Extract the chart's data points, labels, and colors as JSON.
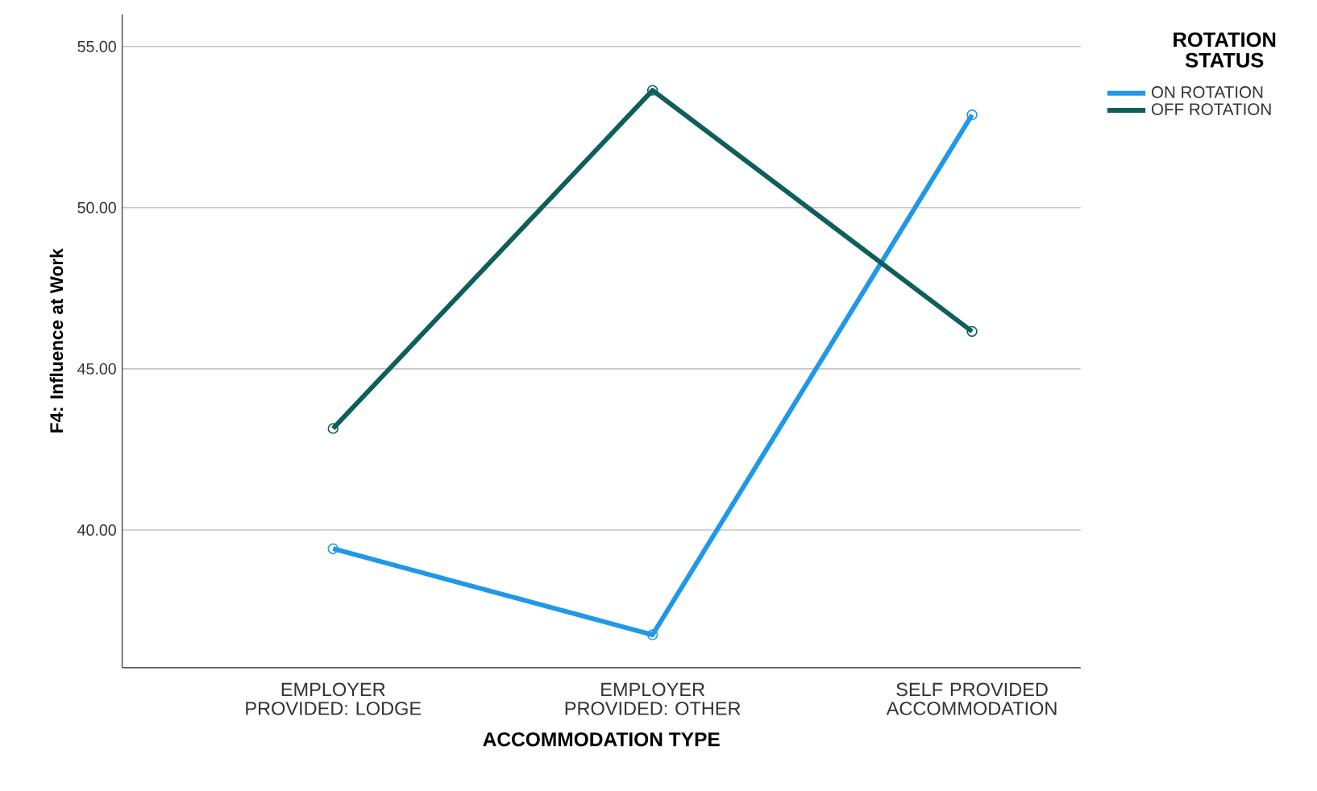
{
  "chart_data": {
    "type": "line",
    "xlabel": "ACCOMMODATION TYPE",
    "ylabel": "F4: Influence at Work",
    "legend_title": "ROTATION STATUS",
    "categories": [
      "EMPLOYER PROVIDED: LODGE",
      "EMPLOYER PROVIDED: OTHER",
      "SELF PROVIDED ACCOMMODATION"
    ],
    "series": [
      {
        "name": "ON ROTATION",
        "color": "#1f98e8",
        "values": [
          39.42,
          36.75,
          52.88
        ]
      },
      {
        "name": "OFF ROTATION",
        "color": "#0e5f5a",
        "values": [
          43.15,
          53.64,
          46.16
        ]
      }
    ],
    "ylim": [
      35.73,
      56.0
    ],
    "yticks": [
      {
        "value": 40,
        "label": "40.00"
      },
      {
        "value": 45,
        "label": "45.00"
      },
      {
        "value": 50,
        "label": "50.00"
      },
      {
        "value": 55,
        "label": "55.00"
      }
    ],
    "grid": "y",
    "legend": "top right",
    "marker": "circle",
    "line_style": "solid"
  }
}
